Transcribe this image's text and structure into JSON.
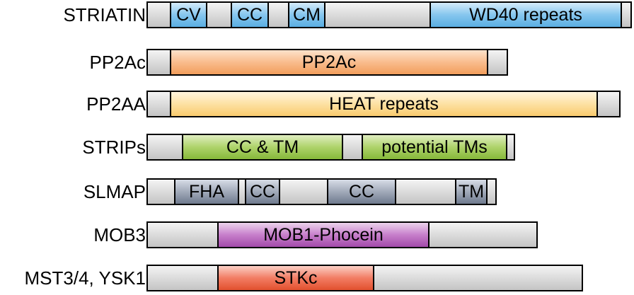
{
  "rows": [
    {
      "label": "STRIATIN",
      "domains": [
        {
          "name": "cv-domain",
          "text": "CV",
          "color": "blue"
        },
        {
          "name": "cc-domain",
          "text": "CC",
          "color": "blue"
        },
        {
          "name": "cm-domain",
          "text": "CM",
          "color": "blue"
        },
        {
          "name": "wd40-domain",
          "text": "WD40 repeats",
          "color": "blue"
        }
      ]
    },
    {
      "label": "PP2Ac",
      "domains": [
        {
          "name": "pp2ac-domain",
          "text": "PP2Ac",
          "color": "orange"
        }
      ]
    },
    {
      "label": "PP2AA",
      "domains": [
        {
          "name": "heat-repeats-domain",
          "text": "HEAT repeats",
          "color": "yellow"
        }
      ]
    },
    {
      "label": "STRIPs",
      "domains": [
        {
          "name": "cc-tm-domain",
          "text": "CC & TM",
          "color": "green"
        },
        {
          "name": "potential-tms-domain",
          "text": "potential TMs",
          "color": "green"
        }
      ]
    },
    {
      "label": "SLMAP",
      "domains": [
        {
          "name": "fha-domain",
          "text": "FHA",
          "color": "slate"
        },
        {
          "name": "cc-domain-1",
          "text": "CC",
          "color": "slate"
        },
        {
          "name": "cc-domain-2",
          "text": "CC",
          "color": "slate"
        },
        {
          "name": "tm-domain",
          "text": "TM",
          "color": "slate"
        }
      ]
    },
    {
      "label": "MOB3",
      "domains": [
        {
          "name": "mob1-phocein-domain",
          "text": "MOB1-Phocein",
          "color": "purple"
        }
      ]
    },
    {
      "label": "MST3/4, YSK1",
      "domains": [
        {
          "name": "stkc-domain",
          "text": "STKc",
          "color": "red"
        }
      ]
    }
  ]
}
